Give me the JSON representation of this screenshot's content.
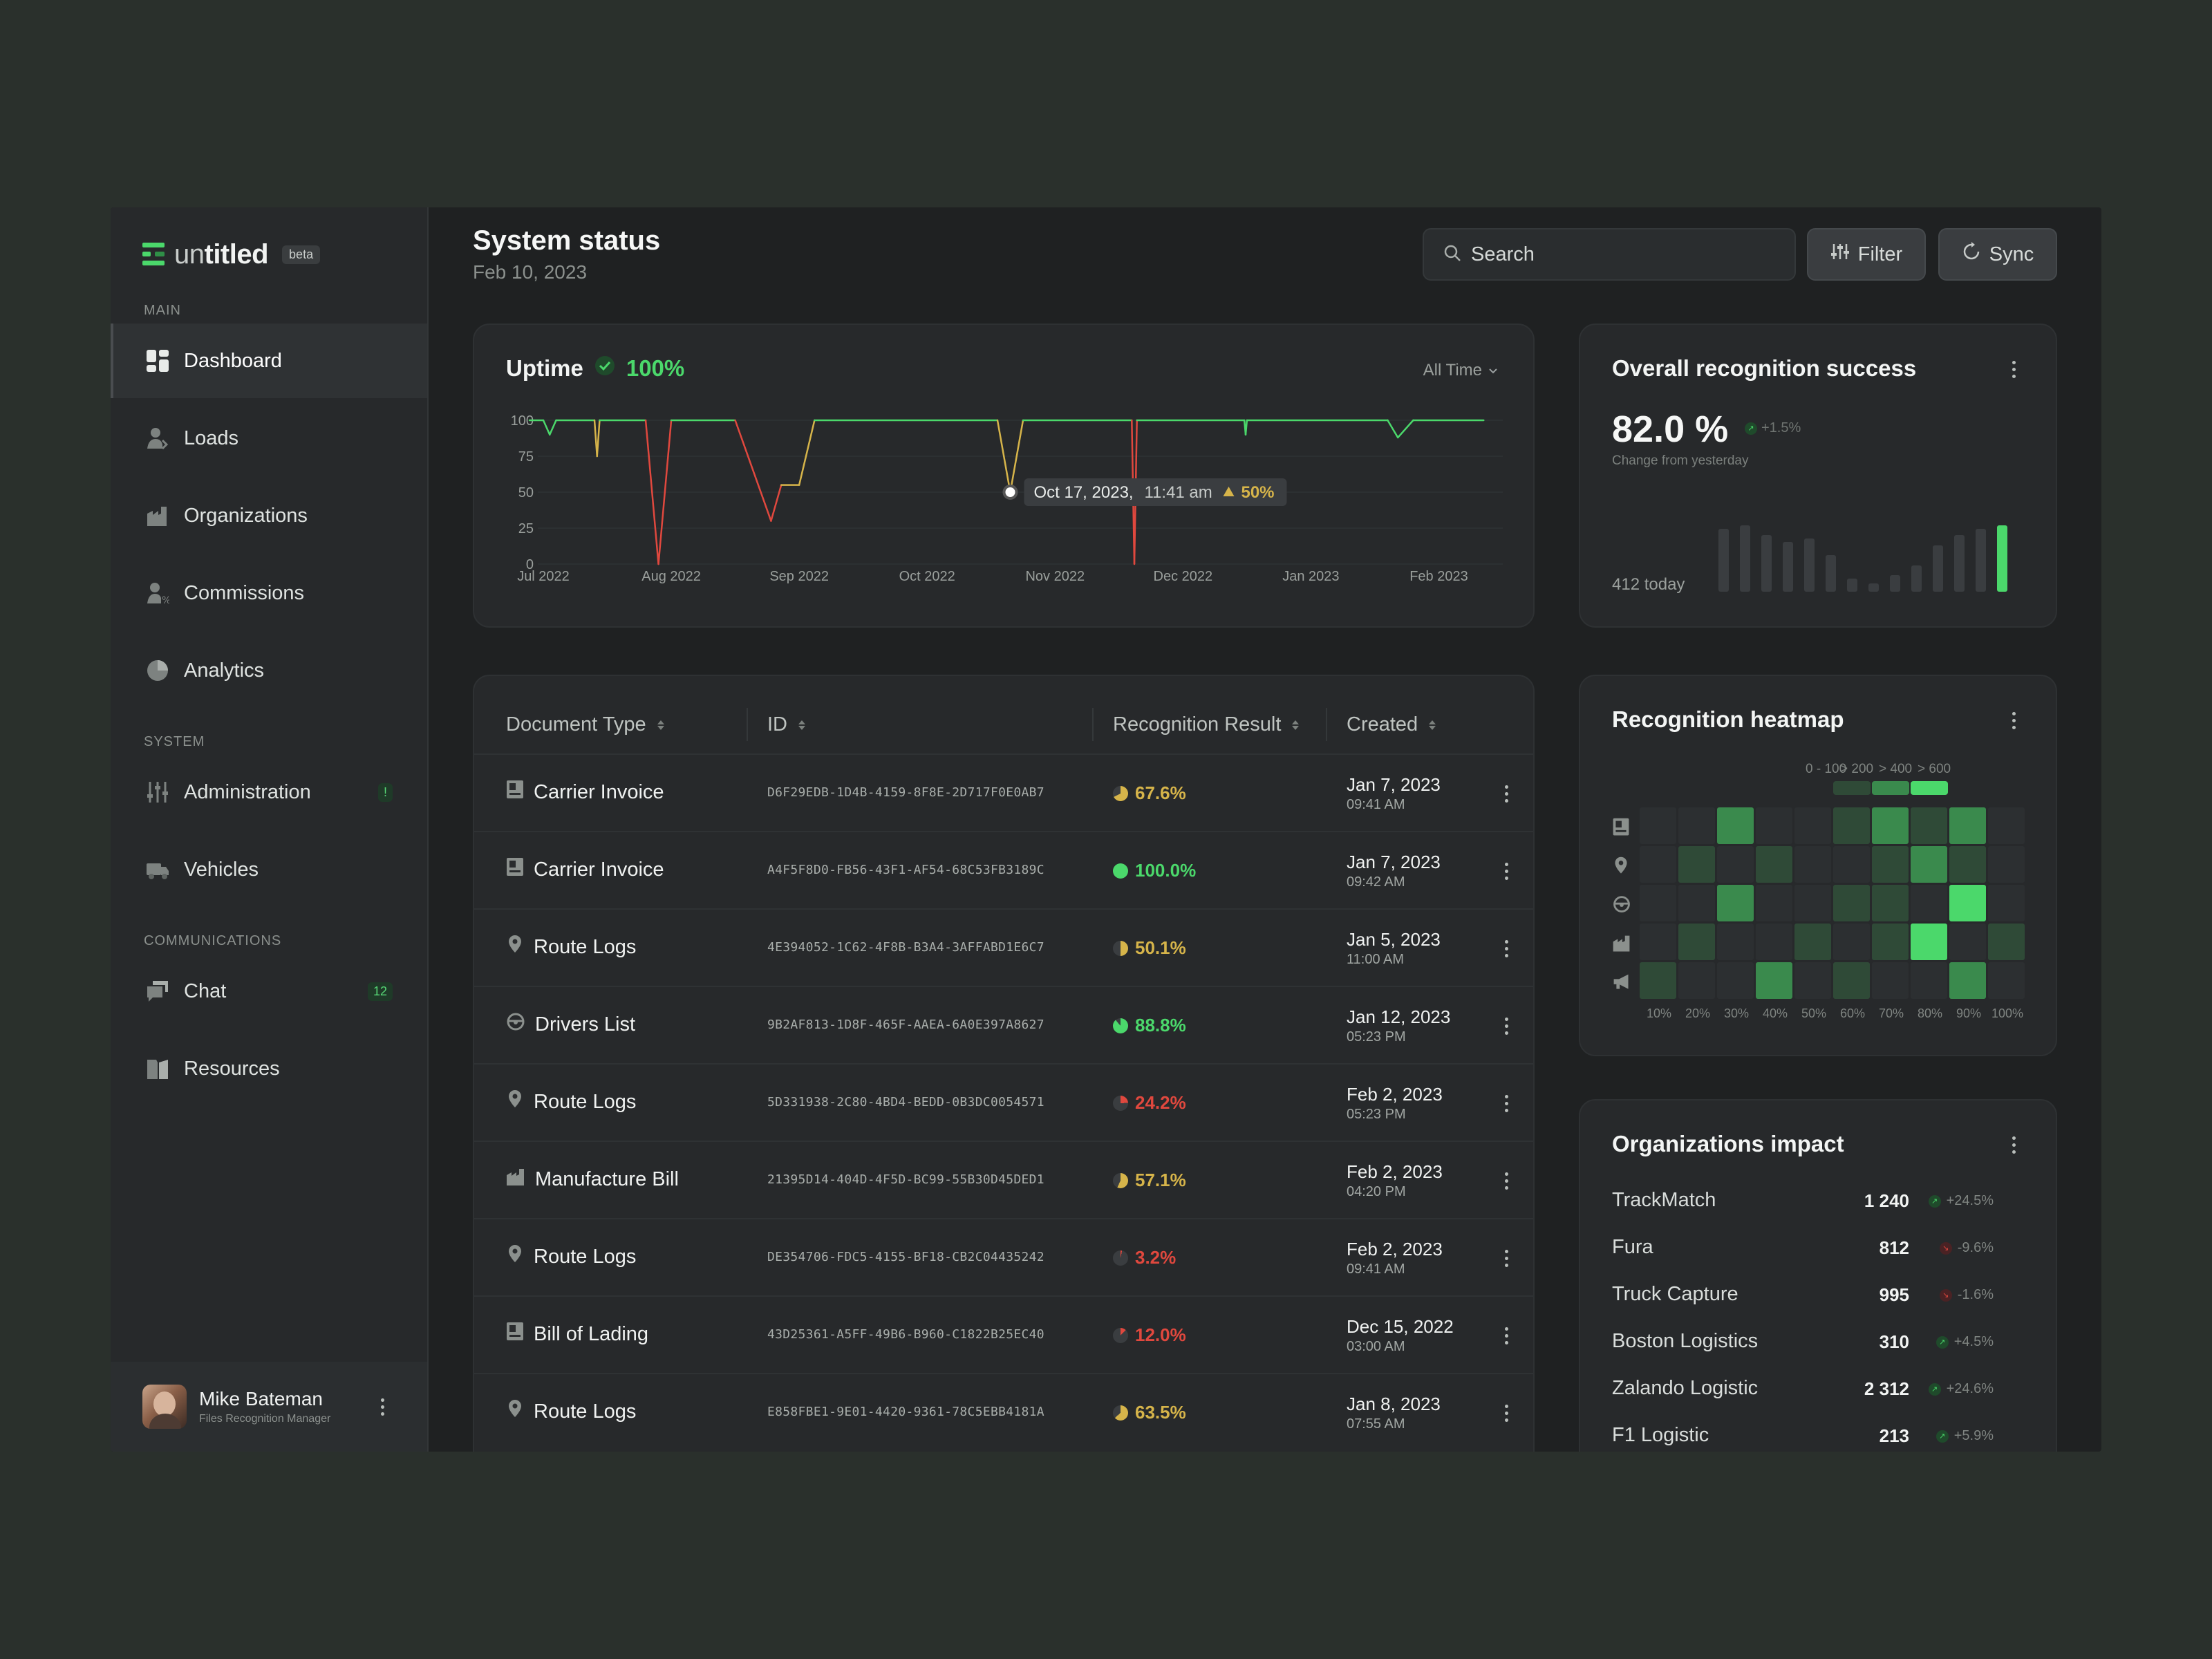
{
  "brand": {
    "name_light": "un",
    "name_bold": "titled",
    "badge": "beta"
  },
  "sidebar": {
    "sections": {
      "main": "MAIN",
      "system": "SYSTEM",
      "communications": "COMMUNICATIONS"
    },
    "items": [
      {
        "label": "Dashboard",
        "icon": "dashboard-icon"
      },
      {
        "label": "Loads",
        "icon": "loads-icon"
      },
      {
        "label": "Organizations",
        "icon": "organizations-icon"
      },
      {
        "label": "Commissions",
        "icon": "commissions-icon"
      },
      {
        "label": "Analytics",
        "icon": "analytics-icon"
      },
      {
        "label": "Administration",
        "icon": "administration-icon",
        "badge": "!"
      },
      {
        "label": "Vehicles",
        "icon": "vehicles-icon"
      },
      {
        "label": "Chat",
        "icon": "chat-icon",
        "badge": "12"
      },
      {
        "label": "Resources",
        "icon": "resources-icon"
      }
    ],
    "user": {
      "name": "Mike Bateman",
      "role": "Files Recognition Manager"
    }
  },
  "header": {
    "title": "System status",
    "date": "Feb 10, 2023",
    "search_placeholder": "Search",
    "filter_label": "Filter",
    "sync_label": "Sync"
  },
  "uptime": {
    "title": "Uptime",
    "value": "100%",
    "range_label": "All Time",
    "tooltip": {
      "date": "Oct 17, 2023,",
      "time": "11:41 am",
      "value": "50%"
    }
  },
  "chart_data": {
    "type": "line",
    "title": "Uptime",
    "y_ticks": [
      "100",
      "75",
      "50",
      "25",
      "0"
    ],
    "x_ticks": [
      "Jul 2022",
      "Aug 2022",
      "Sep 2022",
      "Oct 2022",
      "Nov 2022",
      "Dec 2022",
      "Jan 2023",
      "Feb 2023"
    ],
    "ylim": [
      0,
      100
    ],
    "xlim": [
      0,
      7.5
    ],
    "points": [
      [
        -0.2,
        100
      ],
      [
        0.0,
        100
      ],
      [
        0.05,
        90
      ],
      [
        0.1,
        100
      ],
      [
        0.4,
        100
      ],
      [
        0.42,
        75
      ],
      [
        0.44,
        100
      ],
      [
        0.8,
        100
      ],
      [
        0.9,
        0
      ],
      [
        1.0,
        100
      ],
      [
        1.5,
        100
      ],
      [
        1.78,
        30
      ],
      [
        1.86,
        55
      ],
      [
        2.0,
        55
      ],
      [
        2.12,
        100
      ],
      [
        3.55,
        100
      ],
      [
        3.65,
        50
      ],
      [
        3.75,
        100
      ],
      [
        4.6,
        100
      ],
      [
        4.62,
        0
      ],
      [
        4.64,
        100
      ],
      [
        5.48,
        100
      ],
      [
        5.49,
        90
      ],
      [
        5.5,
        100
      ],
      [
        6.6,
        100
      ],
      [
        6.68,
        88
      ],
      [
        6.8,
        100
      ],
      [
        7.35,
        100
      ]
    ],
    "highlight": {
      "x": 3.65,
      "y": 50,
      "label": "Oct 17, 2023, 11:41 am",
      "value": "50%"
    },
    "colors": {
      "good": "#4bd86b",
      "mid": "#d6b44a",
      "bad": "#e0483e",
      "grid": "#2f3234"
    }
  },
  "table": {
    "headers": {
      "type": "Document Type",
      "id": "ID",
      "result": "Recognition Result",
      "created": "Created"
    },
    "rows": [
      {
        "type": "Carrier Invoice",
        "icon": "invoice-icon",
        "id": "D6F29EDB-1D4B-4159-8F8E-2D717F0E0AB7",
        "result": "67.6%",
        "pct": 67.6,
        "date": "Jan 7, 2023",
        "time": "09:41 AM"
      },
      {
        "type": "Carrier Invoice",
        "icon": "invoice-icon",
        "id": "A4F5F8D0-FB56-43F1-AF54-68C53FB3189C",
        "result": "100.0%",
        "pct": 100,
        "date": "Jan 7, 2023",
        "time": "09:42 AM"
      },
      {
        "type": "Route Logs",
        "icon": "route-icon",
        "id": "4E394052-1C62-4F8B-B3A4-3AFFABD1E6C7",
        "result": "50.1%",
        "pct": 50.1,
        "date": "Jan 5, 2023",
        "time": "11:00 AM"
      },
      {
        "type": "Drivers List",
        "icon": "steering-wheel-icon",
        "id": "9B2AF813-1D8F-465F-AAEA-6A0E397A8627",
        "result": "88.8%",
        "pct": 88.8,
        "date": "Jan 12, 2023",
        "time": "05:23 PM"
      },
      {
        "type": "Route Logs",
        "icon": "route-icon",
        "id": "5D331938-2C80-4BD4-BEDD-0B3DC0054571",
        "result": "24.2%",
        "pct": 24.2,
        "date": "Feb 2, 2023",
        "time": "05:23 PM"
      },
      {
        "type": "Manufacture Bill",
        "icon": "factory-icon",
        "id": "21395D14-404D-4F5D-BC99-55B30D45DED1",
        "result": "57.1%",
        "pct": 57.1,
        "date": "Feb 2, 2023",
        "time": "04:20 PM"
      },
      {
        "type": "Route Logs",
        "icon": "route-icon",
        "id": "DE354706-FDC5-4155-BF18-CB2C04435242",
        "result": "3.2%",
        "pct": 3.2,
        "date": "Feb 2, 2023",
        "time": "09:41 AM"
      },
      {
        "type": "Bill of Lading",
        "icon": "invoice-icon",
        "id": "43D25361-A5FF-49B6-B960-C1822B25EC40",
        "result": "12.0%",
        "pct": 12.0,
        "date": "Dec 15, 2022",
        "time": "03:00 AM"
      },
      {
        "type": "Route Logs",
        "icon": "route-icon",
        "id": "E858FBE1-9E01-4420-9361-78C5EBB4181A",
        "result": "63.5%",
        "pct": 63.5,
        "date": "Jan 8, 2023",
        "time": "07:55 AM"
      }
    ]
  },
  "recognition": {
    "title": "Overall recognition success",
    "value": "82.0 %",
    "change": "+1.5%",
    "change_label": "Change from yesterday",
    "today": "412 today",
    "bars": [
      0.95,
      1.0,
      0.85,
      0.75,
      0.8,
      0.55,
      0.2,
      0.12,
      0.25,
      0.4,
      0.7,
      0.85,
      0.95,
      1.0
    ]
  },
  "heatmap": {
    "title": "Recognition heatmap",
    "legend": [
      "0 - 100",
      "> 200",
      "> 400",
      "> 600"
    ],
    "x_labels": [
      "10%",
      "20%",
      "30%",
      "40%",
      "50%",
      "60%",
      "70%",
      "80%",
      "90%",
      "100%"
    ],
    "row_icons": [
      "invoice-icon",
      "route-icon",
      "steering-wheel-icon",
      "factory-icon",
      "megaphone-icon"
    ],
    "levels": [
      [
        0,
        0,
        2,
        0,
        0,
        1,
        2,
        1,
        2,
        0
      ],
      [
        0,
        1,
        0,
        1,
        0,
        0,
        1,
        2,
        1,
        0
      ],
      [
        0,
        0,
        2,
        0,
        0,
        1,
        1,
        0,
        3,
        0
      ],
      [
        0,
        1,
        0,
        0,
        1,
        0,
        1,
        3,
        0,
        1
      ],
      [
        1,
        0,
        0,
        2,
        0,
        1,
        0,
        0,
        2,
        0
      ]
    ]
  },
  "orgs": {
    "title": "Organizations impact",
    "rows": [
      {
        "name": "TrackMatch",
        "value": "1 240",
        "change": "+24.5%",
        "up": true
      },
      {
        "name": "Fura",
        "value": "812",
        "change": "-9.6%",
        "up": false
      },
      {
        "name": "Truck Capture",
        "value": "995",
        "change": "-1.6%",
        "up": false
      },
      {
        "name": "Boston Logistics",
        "value": "310",
        "change": "+4.5%",
        "up": true
      },
      {
        "name": "Zalando Logistic",
        "value": "2 312",
        "change": "+24.6%",
        "up": true
      },
      {
        "name": "F1 Logistic",
        "value": "213",
        "change": "+5.9%",
        "up": true
      }
    ]
  }
}
